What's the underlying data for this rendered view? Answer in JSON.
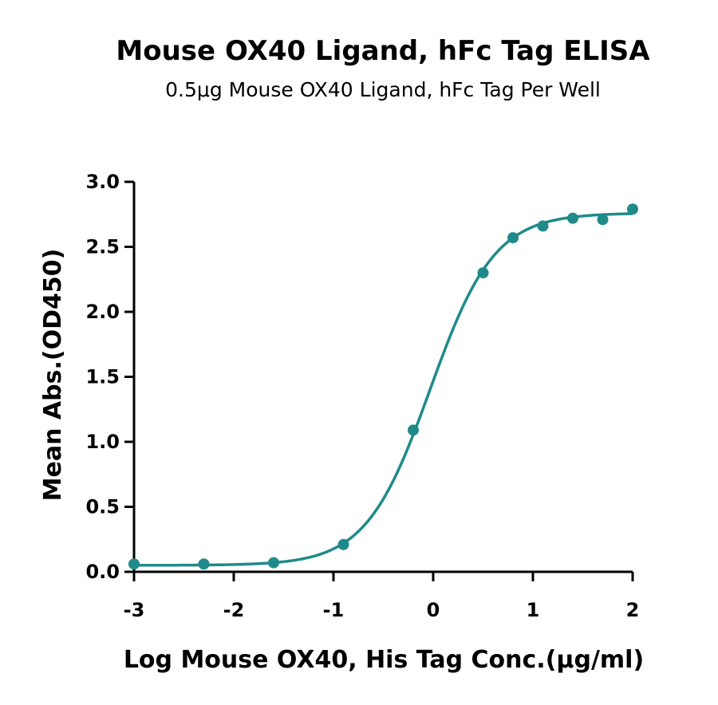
{
  "chart_data": {
    "type": "scatter",
    "title": "Mouse OX40 Ligand, hFc Tag ELISA",
    "subtitle": "0.5μg Mouse OX40 Ligand, hFc Tag Per Well",
    "xlabel": "Log Mouse OX40, His Tag Conc.(μg/ml)",
    "ylabel": "Mean Abs.(OD450)",
    "xlim": [
      -3,
      2
    ],
    "ylim": [
      0,
      3
    ],
    "x_ticks": [
      "-3",
      "-2",
      "-1",
      "0",
      "1",
      "2"
    ],
    "y_ticks": [
      "0.0",
      "0.5",
      "1.0",
      "1.5",
      "2.0",
      "2.5",
      "3.0"
    ],
    "grid": false,
    "color": "#1f8a8a",
    "points": [
      {
        "x": -3.0,
        "y": 0.06
      },
      {
        "x": -2.3,
        "y": 0.06
      },
      {
        "x": -1.6,
        "y": 0.07
      },
      {
        "x": -0.9,
        "y": 0.21
      },
      {
        "x": -0.2,
        "y": 1.09
      },
      {
        "x": 0.5,
        "y": 2.3
      },
      {
        "x": 0.8,
        "y": 2.57
      },
      {
        "x": 1.1,
        "y": 2.66
      },
      {
        "x": 1.4,
        "y": 2.72
      },
      {
        "x": 1.7,
        "y": 2.71
      },
      {
        "x": 2.0,
        "y": 2.79
      }
    ],
    "fit": {
      "model": "4PL",
      "bottom": 0.05,
      "top": 2.76,
      "logEC50": -0.03,
      "hill": 1.35
    }
  }
}
